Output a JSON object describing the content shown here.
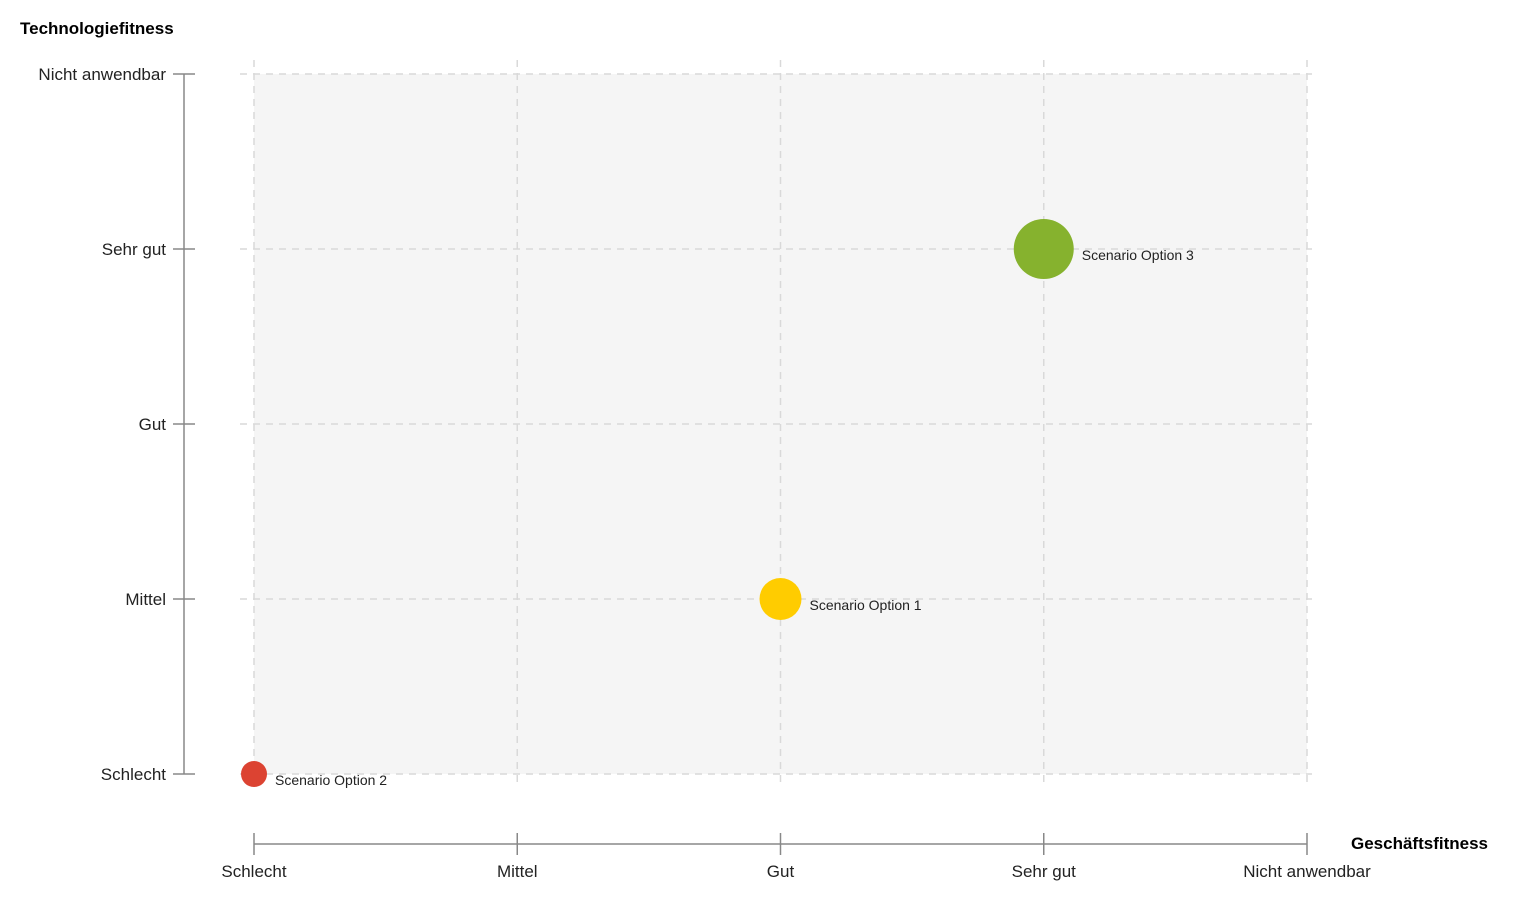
{
  "chart_data": {
    "type": "scatter",
    "title": "",
    "xlabel": "Geschäftsfitness",
    "ylabel": "Technologiefitness",
    "x_categories": [
      "Schlecht",
      "Mittel",
      "Gut",
      "Sehr gut",
      "Nicht anwendbar"
    ],
    "y_categories": [
      "Schlecht",
      "Mittel",
      "Gut",
      "Sehr gut",
      "Nicht anwendbar"
    ],
    "grid": true,
    "points": [
      {
        "label": "Scenario Option 1",
        "x": "Gut",
        "y": "Mittel",
        "size": 2,
        "color": "#ffcc00"
      },
      {
        "label": "Scenario Option 2",
        "x": "Schlecht",
        "y": "Schlecht",
        "size": 1,
        "color": "#dc4332"
      },
      {
        "label": "Scenario Option 3",
        "x": "Sehr gut",
        "y": "Sehr gut",
        "size": 3,
        "color": "#86b22e"
      }
    ]
  },
  "colors": {
    "plot_background": "#f5f5f5",
    "gridline": "#d9d9d9",
    "axis": "#888888"
  }
}
